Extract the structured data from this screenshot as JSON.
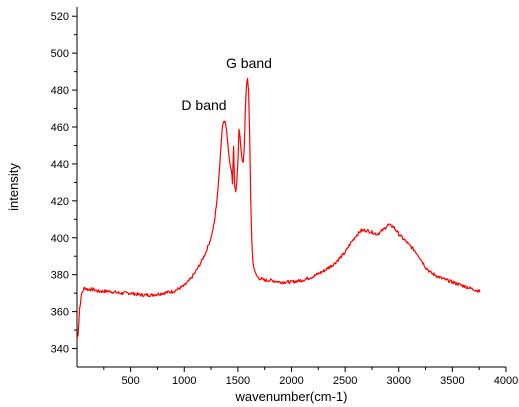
{
  "chart_data": {
    "type": "line",
    "title": "",
    "xlabel": "wavenumber(cm-1)",
    "ylabel": "intensity",
    "xlim": [
      0,
      4000
    ],
    "ylim": [
      330,
      525
    ],
    "grid": false,
    "legend": "none",
    "x_ticks": [
      500,
      1000,
      1500,
      2000,
      2500,
      3000,
      3500,
      4000
    ],
    "y_ticks": [
      340,
      360,
      380,
      400,
      420,
      440,
      460,
      480,
      500,
      520
    ],
    "line_color": "#ff0000",
    "annotations": [
      {
        "text": "D band",
        "x": 1350,
        "y": 463
      },
      {
        "text": "G band",
        "x": 1600,
        "y": 486
      }
    ],
    "series": [
      {
        "x": [
          0,
          10,
          25,
          45,
          70,
          100,
          150,
          200,
          300,
          400,
          500,
          600,
          700,
          800,
          900,
          1000,
          1050,
          1100,
          1150,
          1200,
          1250,
          1280,
          1300,
          1320,
          1340,
          1355,
          1370,
          1385,
          1400,
          1420,
          1440,
          1450,
          1460,
          1470,
          1480,
          1490,
          1500,
          1510,
          1520,
          1530,
          1540,
          1550,
          1560,
          1570,
          1580,
          1590,
          1600,
          1610,
          1620,
          1630,
          1640,
          1660,
          1680,
          1700,
          1750,
          1800,
          1900,
          2000,
          2100,
          2200,
          2300,
          2400,
          2500,
          2550,
          2600,
          2650,
          2700,
          2750,
          2800,
          2850,
          2900,
          2950,
          3000,
          3050,
          3100,
          3150,
          3200,
          3250,
          3300,
          3400,
          3500,
          3600,
          3700,
          3760
        ],
        "y": [
          345,
          348,
          362,
          370,
          373,
          372,
          372,
          371,
          371,
          370,
          370,
          369,
          369,
          370,
          371,
          374,
          377,
          381,
          386,
          392,
          400,
          408,
          418,
          430,
          448,
          460,
          464,
          462,
          455,
          443,
          436,
          430,
          450,
          428,
          425,
          430,
          440,
          458,
          455,
          448,
          442,
          440,
          450,
          470,
          482,
          486,
          480,
          455,
          420,
          398,
          387,
          381,
          379,
          378,
          377,
          377,
          376,
          376,
          377,
          379,
          382,
          386,
          392,
          397,
          401,
          404,
          404,
          403,
          402,
          404,
          407,
          406,
          402,
          399,
          396,
          393,
          389,
          384,
          381,
          378,
          376,
          374,
          372,
          371
        ]
      }
    ]
  }
}
